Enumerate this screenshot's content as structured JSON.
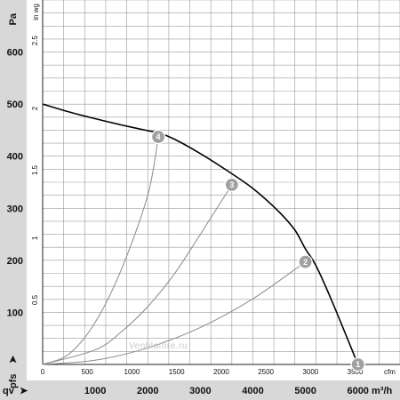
{
  "chart_data": {
    "type": "line",
    "left_axis": {
      "unit": "Pa",
      "ticks": [
        100,
        200,
        300,
        400,
        500,
        600
      ],
      "range": [
        0,
        700
      ],
      "symbol": "p_fs"
    },
    "inner_left_axis": {
      "unit": "in wg",
      "ticks": [
        "0.5",
        "1",
        "1.5",
        "2",
        "2.5"
      ],
      "tick_values": [
        0.5,
        1,
        1.5,
        2,
        2.5
      ]
    },
    "top_x_axis": {
      "unit": "cfm",
      "ticks": [
        "0",
        "500",
        "1000",
        "1500",
        "2000",
        "2500",
        "3000",
        "3500"
      ],
      "tick_values": [
        0,
        500,
        1000,
        1500,
        2000,
        2500,
        3000,
        3500
      ]
    },
    "bottom_x_axis": {
      "unit": "m³/h",
      "symbol": "qv",
      "ticks": [
        "1000",
        "2000",
        "3000",
        "4000",
        "5000",
        "6000"
      ],
      "range": [
        0,
        6800
      ]
    },
    "grid": true,
    "fan_curve": {
      "x": [
        0,
        500,
        1000,
        1500,
        2000,
        2200,
        2500,
        3000,
        3500,
        4000,
        4500,
        4800,
        5000,
        5200,
        5500,
        6000
      ],
      "y": [
        500,
        485,
        472,
        460,
        449,
        445,
        433,
        405,
        373,
        338,
        293,
        258,
        222,
        190,
        123,
        0
      ]
    },
    "system_curves": [
      {
        "label": "4",
        "x": [
          0,
          500,
          1000,
          1500,
          2000,
          2200
        ],
        "y": [
          0,
          20,
          81,
          183,
          325,
          437
        ]
      },
      {
        "label": "3",
        "x": [
          0,
          1000,
          1500,
          2000,
          2500,
          3000,
          3600
        ],
        "y": [
          0,
          28,
          63,
          111,
          173,
          250,
          345
        ]
      },
      {
        "label": "2",
        "x": [
          0,
          1000,
          2000,
          3000,
          4000,
          5000
        ],
        "y": [
          0,
          8,
          32,
          71,
          126,
          197
        ]
      }
    ],
    "operating_points": [
      {
        "label": "1",
        "x": 6000,
        "y": 0
      },
      {
        "label": "2",
        "x": 5000,
        "y": 197
      },
      {
        "label": "3",
        "x": 3600,
        "y": 345
      },
      {
        "label": "4",
        "x": 2200,
        "y": 437
      }
    ],
    "watermark": "Ventilatore.ru"
  },
  "labels": {
    "pa_unit": "Pa",
    "inwg_unit": "in wg",
    "cfm_unit": "cfm",
    "m3h_unit": "m³/h",
    "qv_symbol": "qv",
    "pfs_symbol": "pfs"
  },
  "colors": {
    "grid": "#9a9a9a",
    "fan_curve": "#000000",
    "system_curve": "#8a8a8a",
    "marker": "#a0a0a0",
    "band": "#d8d8d8"
  }
}
